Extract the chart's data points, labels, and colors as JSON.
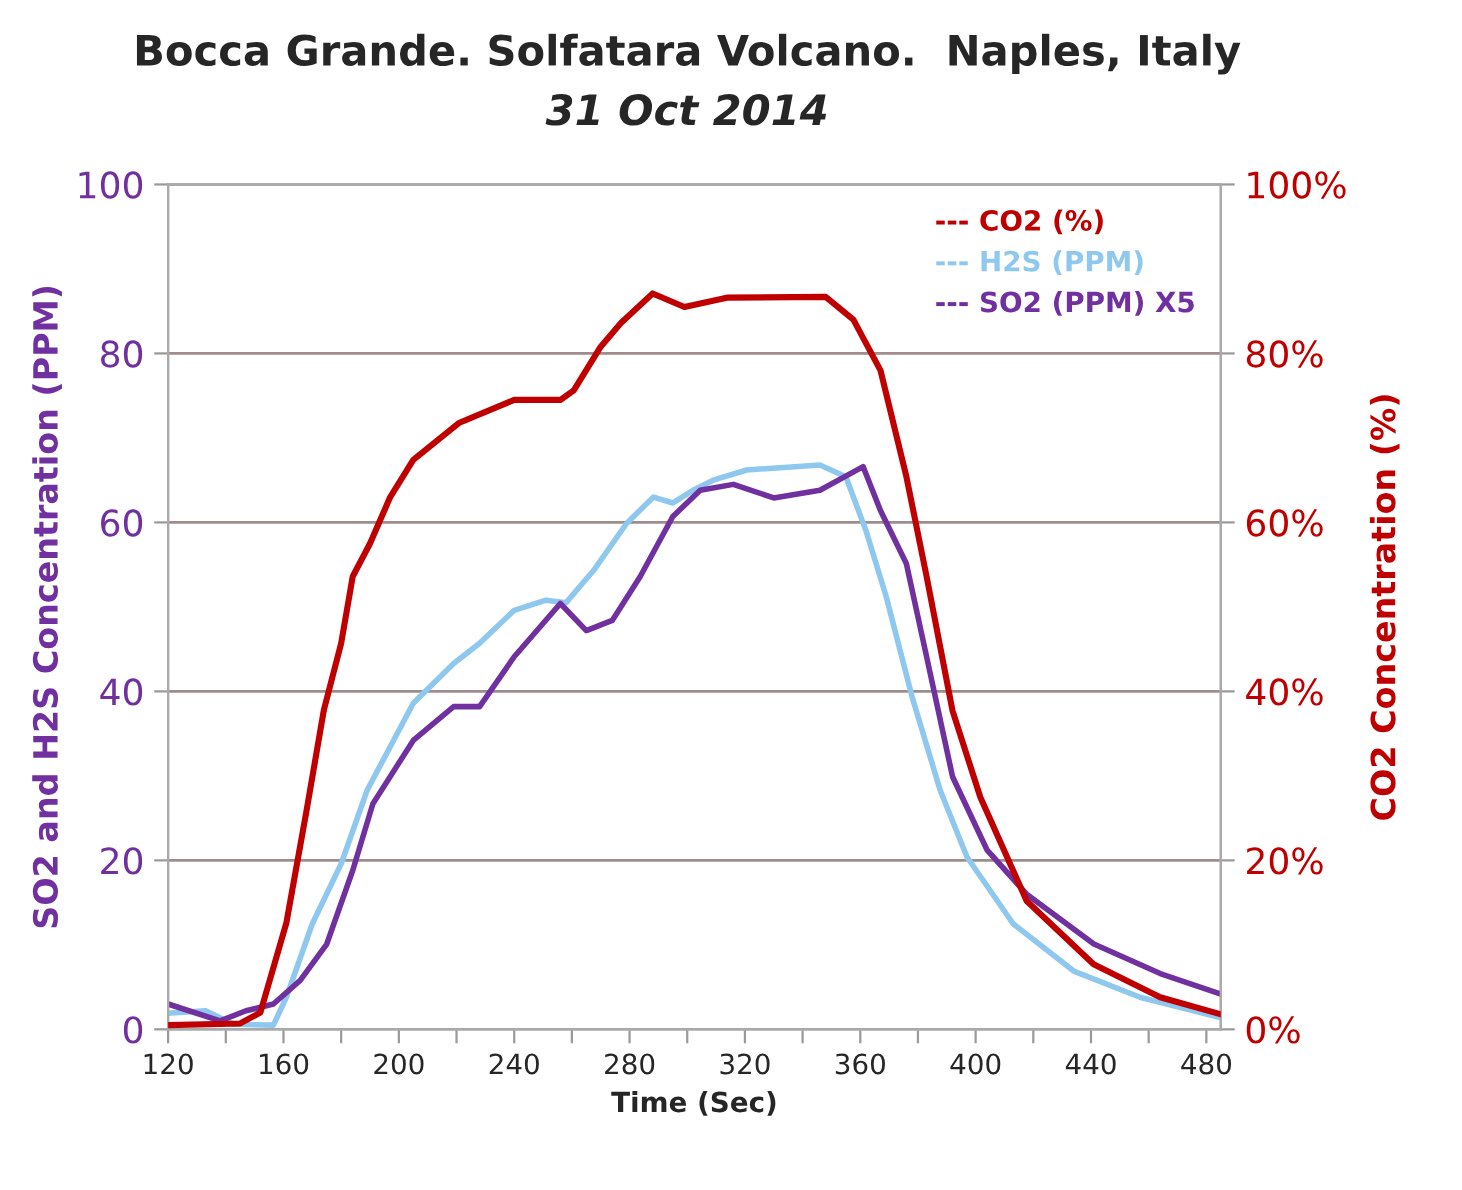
{
  "chart_data": {
    "type": "line",
    "title": "Bocca Grande. Solfatara Volcano.  Naples, Italy",
    "subtitle": "31 Oct 2014",
    "xlabel": "Time (Sec)",
    "ylabel": "SO2 and H2S Concentration (PPM)",
    "y2label": "CO2 Concentration (%)",
    "xlim": [
      120,
      485
    ],
    "xticks": [
      120,
      {
        "value": 140,
        "label": null
      },
      160,
      {
        "value": 180,
        "label": null
      },
      200,
      {
        "value": 220,
        "label": null
      },
      240,
      {
        "value": 260,
        "label": null
      },
      280,
      {
        "value": 300,
        "label": null
      },
      320,
      {
        "value": 340,
        "label": null
      },
      360,
      {
        "value": 380,
        "label": null
      },
      400,
      {
        "value": 420,
        "label": null
      },
      440,
      {
        "value": 460,
        "label": null
      },
      480
    ],
    "ylim": [
      0,
      100
    ],
    "yticks": [
      0,
      20,
      40,
      60,
      80,
      100
    ],
    "y2lim": [
      0,
      100
    ],
    "y2ticks": [
      {
        "value": 0,
        "label": "0%"
      },
      {
        "value": 20,
        "label": "20%"
      },
      {
        "value": 40,
        "label": "40%"
      },
      {
        "value": 60,
        "label": "60%"
      },
      {
        "value": 80,
        "label": "80%"
      },
      {
        "value": 100,
        "label": "100%"
      }
    ],
    "grid": "y",
    "legend": "top right",
    "line_style": "solid",
    "marker": "none",
    "series": [
      {
        "name": "--- CO2 (%)",
        "color": "#c00000",
        "axis": "y2",
        "x": [
          120,
          145,
          152,
          161,
          168,
          174,
          180,
          184,
          190,
          197,
          205,
          221,
          240,
          256,
          260.6,
          270,
          277,
          288,
          299,
          313.7,
          348,
          357.6,
          367,
          376,
          383,
          392,
          401.6,
          417.7,
          440.9,
          464,
          484.8
        ],
        "values": [
          0.5,
          0.7,
          2,
          12.6,
          25.9,
          37.8,
          45.7,
          53.6,
          57.5,
          63,
          67.4,
          71.8,
          74.5,
          74.5,
          75.6,
          80.8,
          83.6,
          87.1,
          85.5,
          86.6,
          86.7,
          84,
          78,
          65.4,
          53.6,
          37.7,
          27.5,
          15.2,
          7.7,
          3.8,
          1.8
        ]
      },
      {
        "name": "--- H2S (PPM)",
        "color": "#8ec8ee",
        "x": [
          120,
          133,
          142.7,
          156.5,
          161,
          170,
          180,
          189,
          205,
          219,
          228,
          240,
          251,
          258,
          267.5,
          279,
          288.3,
          295,
          302,
          309,
          320.6,
          346,
          355,
          362,
          369,
          378,
          387.7,
          397,
          413,
          434,
          457,
          484.8
        ],
        "values": [
          1.9,
          2.2,
          0.6,
          0.5,
          3.8,
          12.5,
          19.6,
          28.3,
          38.6,
          43.3,
          45.7,
          49.6,
          50.8,
          50.5,
          54.3,
          59.9,
          63,
          62.3,
          63.8,
          65,
          66.2,
          66.8,
          65.4,
          59,
          51.2,
          39.3,
          28.3,
          20.4,
          12.5,
          6.9,
          3.8,
          1.4
        ]
      },
      {
        "name": "--- SO2 (PPM) X5",
        "color": "#7030a0",
        "x": [
          120,
          138,
          147,
          156.5,
          165.8,
          175,
          184,
          191,
          205,
          219,
          228,
          240,
          256,
          265,
          274,
          283.7,
          295,
          304.5,
          316,
          330,
          346,
          361,
          367,
          376,
          383,
          392,
          404,
          417.7,
          441,
          464,
          484.8
        ],
        "values": [
          3,
          1,
          2.2,
          3,
          5.8,
          10.1,
          18.8,
          26.7,
          34.2,
          38.2,
          38.2,
          44.1,
          50.4,
          47.2,
          48.4,
          53.6,
          60.7,
          63.8,
          64.5,
          62.9,
          63.8,
          66.6,
          61.4,
          55.1,
          44.1,
          29.9,
          21.2,
          16,
          10.1,
          6.6,
          4.2
        ]
      }
    ]
  }
}
